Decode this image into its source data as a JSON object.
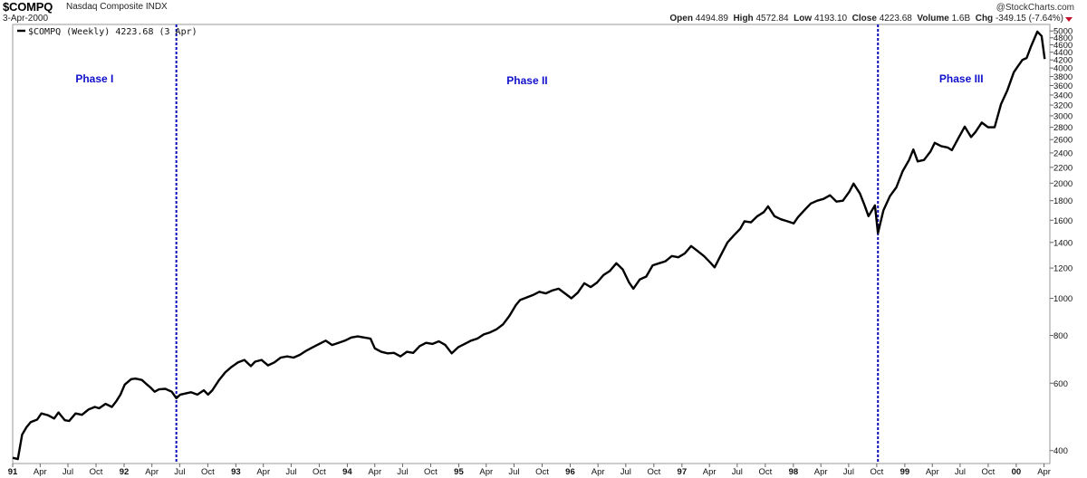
{
  "header": {
    "ticker": "$COMPQ",
    "name": "Nasdaq Composite INDX",
    "date": "3-Apr-2000",
    "copyright": "@StockCharts.com",
    "open_label": "Open",
    "open_value": "4494.89",
    "high_label": "High",
    "high_value": "4572.84",
    "low_label": "Low",
    "low_value": "4193.10",
    "close_label": "Close",
    "close_value": "4223.68",
    "volume_label": "Volume",
    "volume_value": "1.6B",
    "chg_label": "Chg",
    "chg_value": "-349.15 (-7.64%)"
  },
  "colors": {
    "line": "#000000",
    "phase_marker": "#0b0bb8",
    "phase_text": "#1010cc",
    "chg_arrow": "#c0102a",
    "frame": "#9a9a9a"
  },
  "chart_data": {
    "type": "line",
    "title": "$COMPQ Nasdaq Composite INDX",
    "legend": "$COMPQ (Weekly) 4223.68 (3 Apr)",
    "legend_position": "top-left",
    "y_scale": "log",
    "ylim": [
      370,
      5200
    ],
    "y_ticks": [
      "400",
      "600",
      "800",
      "1000",
      "1200",
      "1400",
      "1600",
      "1800",
      "2000",
      "2200",
      "2400",
      "2600",
      "2800",
      "3000",
      "3200",
      "3400",
      "3600",
      "3800",
      "4000",
      "4200",
      "4400",
      "4600",
      "4800",
      "5000"
    ],
    "xlim": [
      "1991-01-01",
      "2000-04-20"
    ],
    "x_ticks": [
      {
        "label": "91",
        "date": "1991-01-01",
        "year": true
      },
      {
        "label": "Apr",
        "date": "1991-04-01"
      },
      {
        "label": "Jul",
        "date": "1991-07-01"
      },
      {
        "label": "Oct",
        "date": "1991-10-01"
      },
      {
        "label": "92",
        "date": "1992-01-01",
        "year": true
      },
      {
        "label": "Apr",
        "date": "1992-04-01"
      },
      {
        "label": "Jul",
        "date": "1992-07-01"
      },
      {
        "label": "Oct",
        "date": "1992-10-01"
      },
      {
        "label": "93",
        "date": "1993-01-01",
        "year": true
      },
      {
        "label": "Apr",
        "date": "1993-04-01"
      },
      {
        "label": "Jul",
        "date": "1993-07-01"
      },
      {
        "label": "Oct",
        "date": "1993-10-01"
      },
      {
        "label": "94",
        "date": "1994-01-01",
        "year": true
      },
      {
        "label": "Apr",
        "date": "1994-04-01"
      },
      {
        "label": "Jul",
        "date": "1994-07-01"
      },
      {
        "label": "Oct",
        "date": "1994-10-01"
      },
      {
        "label": "95",
        "date": "1995-01-01",
        "year": true
      },
      {
        "label": "Apr",
        "date": "1995-04-01"
      },
      {
        "label": "Jul",
        "date": "1995-07-01"
      },
      {
        "label": "Oct",
        "date": "1995-10-01"
      },
      {
        "label": "96",
        "date": "1996-01-01",
        "year": true
      },
      {
        "label": "Apr",
        "date": "1996-04-01"
      },
      {
        "label": "Jul",
        "date": "1996-07-01"
      },
      {
        "label": "Oct",
        "date": "1996-10-01"
      },
      {
        "label": "97",
        "date": "1997-01-01",
        "year": true
      },
      {
        "label": "Apr",
        "date": "1997-04-01"
      },
      {
        "label": "Jul",
        "date": "1997-07-01"
      },
      {
        "label": "Oct",
        "date": "1997-10-01"
      },
      {
        "label": "98",
        "date": "1998-01-01",
        "year": true
      },
      {
        "label": "Apr",
        "date": "1998-04-01"
      },
      {
        "label": "Jul",
        "date": "1998-07-01"
      },
      {
        "label": "Oct",
        "date": "1998-10-01"
      },
      {
        "label": "99",
        "date": "1999-01-01",
        "year": true
      },
      {
        "label": "Apr",
        "date": "1999-04-01"
      },
      {
        "label": "Jul",
        "date": "1999-07-01"
      },
      {
        "label": "Oct",
        "date": "1999-10-01"
      },
      {
        "label": "00",
        "date": "2000-01-01",
        "year": true
      },
      {
        "label": "Apr",
        "date": "2000-04-01"
      }
    ],
    "phases": [
      {
        "label": "Phase I",
        "start": "1991-01-01",
        "end": "1992-06-20"
      },
      {
        "label": "Phase II",
        "start": "1992-06-20",
        "end": "1998-10-05"
      },
      {
        "label": "Phase III",
        "start": "1998-10-05",
        "end": "2000-04-03"
      }
    ],
    "phase_boundaries": [
      "1992-06-20",
      "1998-10-05"
    ],
    "series": [
      {
        "values": [
          [
            "1991-01-01",
            383
          ],
          [
            "1991-01-18",
            380
          ],
          [
            "1991-02-01",
            440
          ],
          [
            "1991-02-15",
            460
          ],
          [
            "1991-03-01",
            475
          ],
          [
            "1991-03-22",
            482
          ],
          [
            "1991-04-05",
            500
          ],
          [
            "1991-04-26",
            495
          ],
          [
            "1991-05-17",
            485
          ],
          [
            "1991-05-31",
            503
          ],
          [
            "1991-06-21",
            480
          ],
          [
            "1991-07-05",
            478
          ],
          [
            "1991-07-26",
            500
          ],
          [
            "1991-08-16",
            496
          ],
          [
            "1991-09-06",
            512
          ],
          [
            "1991-09-27",
            520
          ],
          [
            "1991-10-11",
            516
          ],
          [
            "1991-11-01",
            530
          ],
          [
            "1991-11-22",
            520
          ],
          [
            "1991-12-06",
            538
          ],
          [
            "1991-12-20",
            560
          ],
          [
            "1992-01-03",
            595
          ],
          [
            "1992-01-24",
            615
          ],
          [
            "1992-02-07",
            617
          ],
          [
            "1992-02-28",
            612
          ],
          [
            "1992-03-13",
            598
          ],
          [
            "1992-03-27",
            585
          ],
          [
            "1992-04-10",
            570
          ],
          [
            "1992-04-24",
            578
          ],
          [
            "1992-05-15",
            580
          ],
          [
            "1992-06-05",
            570
          ],
          [
            "1992-06-20",
            548
          ],
          [
            "1992-07-03",
            560
          ],
          [
            "1992-07-24",
            565
          ],
          [
            "1992-08-07",
            568
          ],
          [
            "1992-08-28",
            560
          ],
          [
            "1992-09-18",
            575
          ],
          [
            "1992-10-02",
            560
          ],
          [
            "1992-10-16",
            575
          ],
          [
            "1992-11-06",
            610
          ],
          [
            "1992-11-27",
            640
          ],
          [
            "1992-12-18",
            662
          ],
          [
            "1993-01-08",
            680
          ],
          [
            "1993-01-29",
            690
          ],
          [
            "1993-02-19",
            665
          ],
          [
            "1993-03-05",
            683
          ],
          [
            "1993-03-26",
            690
          ],
          [
            "1993-04-16",
            668
          ],
          [
            "1993-05-07",
            680
          ],
          [
            "1993-05-28",
            700
          ],
          [
            "1993-06-18",
            705
          ],
          [
            "1993-07-09",
            700
          ],
          [
            "1993-07-30",
            712
          ],
          [
            "1993-08-20",
            730
          ],
          [
            "1993-09-10",
            745
          ],
          [
            "1993-10-01",
            760
          ],
          [
            "1993-10-22",
            775
          ],
          [
            "1993-11-12",
            755
          ],
          [
            "1993-12-03",
            765
          ],
          [
            "1993-12-24",
            775
          ],
          [
            "1994-01-14",
            790
          ],
          [
            "1994-02-04",
            795
          ],
          [
            "1994-02-25",
            790
          ],
          [
            "1994-03-18",
            785
          ],
          [
            "1994-04-01",
            740
          ],
          [
            "1994-04-22",
            725
          ],
          [
            "1994-05-13",
            718
          ],
          [
            "1994-06-03",
            720
          ],
          [
            "1994-06-24",
            705
          ],
          [
            "1994-07-15",
            725
          ],
          [
            "1994-08-05",
            720
          ],
          [
            "1994-08-26",
            750
          ],
          [
            "1994-09-16",
            765
          ],
          [
            "1994-10-07",
            760
          ],
          [
            "1994-10-28",
            772
          ],
          [
            "1994-11-18",
            755
          ],
          [
            "1994-12-09",
            718
          ],
          [
            "1994-12-30",
            745
          ],
          [
            "1995-01-20",
            760
          ],
          [
            "1995-02-10",
            775
          ],
          [
            "1995-03-03",
            785
          ],
          [
            "1995-03-24",
            805
          ],
          [
            "1995-04-14",
            815
          ],
          [
            "1995-05-05",
            830
          ],
          [
            "1995-05-26",
            855
          ],
          [
            "1995-06-16",
            900
          ],
          [
            "1995-07-07",
            960
          ],
          [
            "1995-07-21",
            990
          ],
          [
            "1995-08-11",
            1005
          ],
          [
            "1995-09-01",
            1020
          ],
          [
            "1995-09-22",
            1040
          ],
          [
            "1995-10-13",
            1030
          ],
          [
            "1995-11-03",
            1048
          ],
          [
            "1995-11-24",
            1060
          ],
          [
            "1995-12-15",
            1030
          ],
          [
            "1996-01-05",
            1000
          ],
          [
            "1996-01-26",
            1035
          ],
          [
            "1996-02-16",
            1095
          ],
          [
            "1996-03-08",
            1070
          ],
          [
            "1996-03-29",
            1100
          ],
          [
            "1996-04-19",
            1150
          ],
          [
            "1996-05-10",
            1180
          ],
          [
            "1996-05-31",
            1235
          ],
          [
            "1996-06-21",
            1190
          ],
          [
            "1996-07-12",
            1100
          ],
          [
            "1996-07-26",
            1060
          ],
          [
            "1996-08-16",
            1120
          ],
          [
            "1996-09-06",
            1140
          ],
          [
            "1996-09-27",
            1220
          ],
          [
            "1996-10-18",
            1235
          ],
          [
            "1996-11-08",
            1250
          ],
          [
            "1996-11-29",
            1290
          ],
          [
            "1996-12-20",
            1280
          ],
          [
            "1997-01-10",
            1310
          ],
          [
            "1997-01-31",
            1370
          ],
          [
            "1997-02-21",
            1330
          ],
          [
            "1997-03-14",
            1290
          ],
          [
            "1997-04-04",
            1240
          ],
          [
            "1997-04-18",
            1205
          ],
          [
            "1997-05-09",
            1300
          ],
          [
            "1997-05-30",
            1400
          ],
          [
            "1997-06-20",
            1460
          ],
          [
            "1997-07-11",
            1520
          ],
          [
            "1997-07-25",
            1590
          ],
          [
            "1997-08-15",
            1580
          ],
          [
            "1997-09-05",
            1640
          ],
          [
            "1997-09-26",
            1680
          ],
          [
            "1997-10-10",
            1740
          ],
          [
            "1997-10-31",
            1640
          ],
          [
            "1997-11-21",
            1610
          ],
          [
            "1997-12-12",
            1590
          ],
          [
            "1998-01-02",
            1570
          ],
          [
            "1998-01-16",
            1630
          ],
          [
            "1998-02-06",
            1700
          ],
          [
            "1998-02-27",
            1770
          ],
          [
            "1998-03-20",
            1800
          ],
          [
            "1998-04-10",
            1820
          ],
          [
            "1998-05-01",
            1860
          ],
          [
            "1998-05-22",
            1790
          ],
          [
            "1998-06-12",
            1800
          ],
          [
            "1998-07-03",
            1900
          ],
          [
            "1998-07-17",
            1995
          ],
          [
            "1998-08-07",
            1880
          ],
          [
            "1998-08-21",
            1760
          ],
          [
            "1998-09-04",
            1640
          ],
          [
            "1998-09-25",
            1750
          ],
          [
            "1998-10-05",
            1480
          ],
          [
            "1998-10-23",
            1700
          ],
          [
            "1998-11-13",
            1850
          ],
          [
            "1998-12-04",
            1950
          ],
          [
            "1998-12-25",
            2150
          ],
          [
            "1999-01-15",
            2300
          ],
          [
            "1999-01-29",
            2450
          ],
          [
            "1999-02-12",
            2280
          ],
          [
            "1999-03-05",
            2300
          ],
          [
            "1999-03-26",
            2420
          ],
          [
            "1999-04-09",
            2550
          ],
          [
            "1999-04-30",
            2500
          ],
          [
            "1999-05-21",
            2480
          ],
          [
            "1999-06-04",
            2440
          ],
          [
            "1999-06-25",
            2620
          ],
          [
            "1999-07-16",
            2810
          ],
          [
            "1999-08-06",
            2640
          ],
          [
            "1999-08-20",
            2720
          ],
          [
            "1999-09-10",
            2880
          ],
          [
            "1999-10-01",
            2800
          ],
          [
            "1999-10-22",
            2800
          ],
          [
            "1999-11-12",
            3220
          ],
          [
            "1999-12-03",
            3500
          ],
          [
            "1999-12-24",
            3900
          ],
          [
            "2000-01-07",
            4050
          ],
          [
            "2000-01-21",
            4200
          ],
          [
            "2000-02-04",
            4250
          ],
          [
            "2000-02-18",
            4550
          ],
          [
            "2000-03-10",
            4980
          ],
          [
            "2000-03-24",
            4850
          ],
          [
            "2000-04-03",
            4223.68
          ]
        ]
      }
    ]
  }
}
